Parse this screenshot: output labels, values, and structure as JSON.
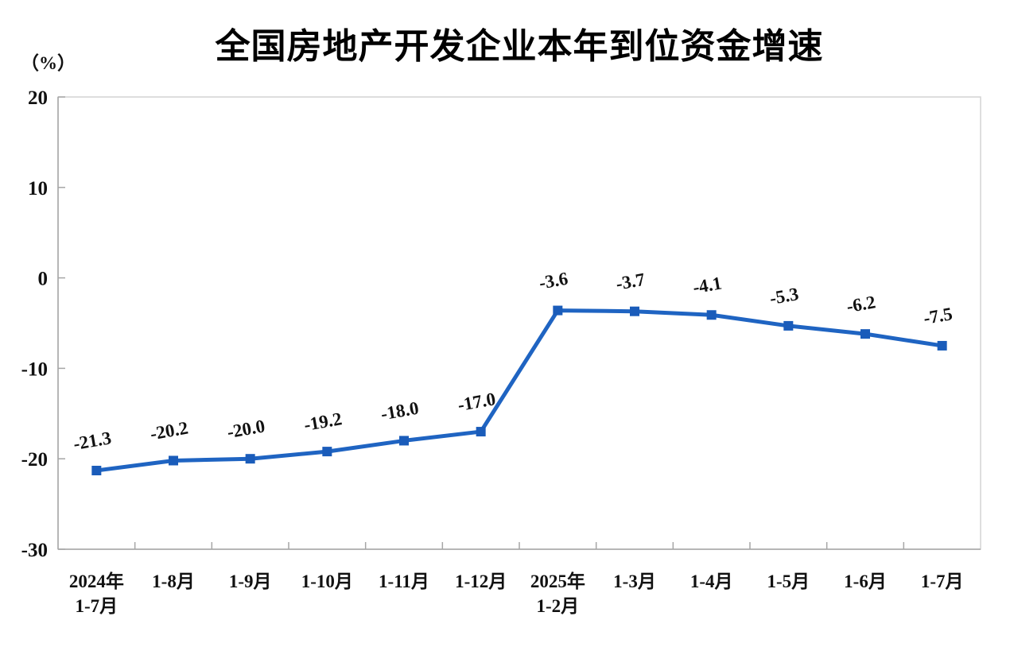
{
  "chart_data": {
    "type": "line",
    "title": "全国房地产开发企业本年到位资金增速",
    "unit_label": "（%）",
    "categories": [
      "2024年\n1-7月",
      "1-8月",
      "1-9月",
      "1-10月",
      "1-11月",
      "1-12月",
      "2025年\n1-2月",
      "1-3月",
      "1-4月",
      "1-5月",
      "1-6月",
      "1-7月"
    ],
    "values": [
      -21.3,
      -20.2,
      -20.0,
      -19.2,
      -18.0,
      -17.0,
      -3.6,
      -3.7,
      -4.1,
      -5.3,
      -6.2,
      -7.5
    ],
    "labels": [
      "-21.3",
      "-20.2",
      "-20.0",
      "-19.2",
      "-18.0",
      "-17.0",
      "-3.6",
      "-3.7",
      "-4.1",
      "-5.3",
      "-6.2",
      "-7.5"
    ],
    "ylim": [
      -30,
      20
    ],
    "y_ticks": [
      "20",
      "10",
      "0",
      "-10",
      "-20",
      "-30"
    ],
    "grid": false,
    "legend": "none",
    "colors": {
      "line": "#1f64c2",
      "marker": "#1a5cba",
      "axis": "#a6a6a6",
      "border": "#d4d4d4",
      "text": "#111111"
    }
  }
}
